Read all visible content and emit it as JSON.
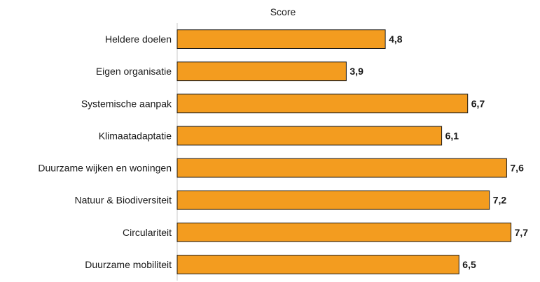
{
  "chart_data": {
    "type": "bar",
    "orientation": "horizontal",
    "title": "",
    "xlabel": "Score",
    "ylabel": "",
    "categories": [
      "Heldere doelen",
      "Eigen organisatie",
      "Systemische aanpak",
      "Klimaatadaptatie",
      "Duurzame wijken en woningen",
      "Natuur & Biodiversiteit",
      "Circulariteit",
      "Duurzame mobiliteit"
    ],
    "values": [
      4.8,
      3.9,
      6.7,
      6.1,
      7.6,
      7.2,
      7.7,
      6.5
    ],
    "value_labels": [
      "4,8",
      "3,9",
      "6,7",
      "6,1",
      "7,6",
      "7,2",
      "7,7",
      "6,5"
    ],
    "xlim": [
      0,
      7.9
    ],
    "grid": false,
    "legend": "none",
    "bar_color": "#F39C1F",
    "bar_edge_color": "#1a1a1a"
  }
}
